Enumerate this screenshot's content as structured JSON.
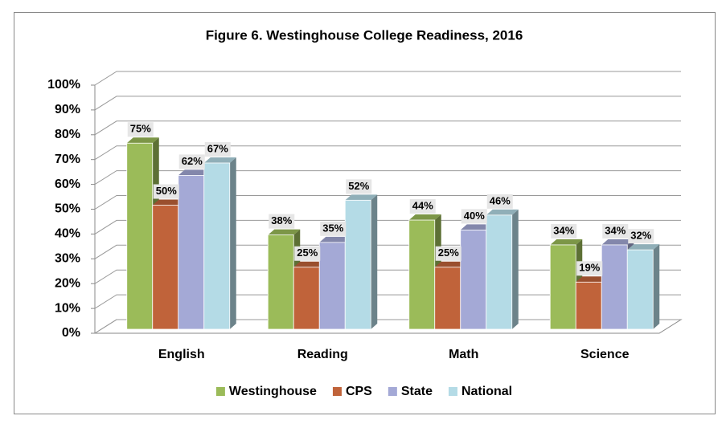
{
  "chart_data": {
    "type": "bar3d",
    "title": "Figure 6. Westinghouse College Readiness, 2016",
    "categories": [
      "English",
      "Reading",
      "Math",
      "Science"
    ],
    "series": [
      {
        "name": "Westinghouse",
        "color": "#9bbb59",
        "values": [
          75,
          38,
          44,
          34
        ],
        "value_labels": [
          "75%",
          "38%",
          "44%",
          "34%"
        ]
      },
      {
        "name": "CPS",
        "color": "#c0633a",
        "values": [
          50,
          25,
          25,
          19
        ],
        "value_labels": [
          "50%",
          "25%",
          "25%",
          "19%"
        ]
      },
      {
        "name": "State",
        "color": "#a4a9d6",
        "values": [
          62,
          35,
          40,
          34
        ],
        "value_labels": [
          "62%",
          "35%",
          "40%",
          "34%"
        ]
      },
      {
        "name": "National",
        "color": "#b4dbe6",
        "values": [
          67,
          52,
          46,
          32
        ],
        "value_labels": [
          "67%",
          "52%",
          "46%",
          "32%"
        ]
      }
    ],
    "ylim": [
      0,
      100
    ],
    "yticks": [
      {
        "value": 0,
        "label": "0%"
      },
      {
        "value": 10,
        "label": "10%"
      },
      {
        "value": 20,
        "label": "20%"
      },
      {
        "value": 30,
        "label": "30%"
      },
      {
        "value": 40,
        "label": "40%"
      },
      {
        "value": 50,
        "label": "50%"
      },
      {
        "value": 60,
        "label": "60%"
      },
      {
        "value": 70,
        "label": "70%"
      },
      {
        "value": 80,
        "label": "80%"
      },
      {
        "value": 90,
        "label": "90%"
      },
      {
        "value": 100,
        "label": "100%"
      }
    ],
    "grid": true,
    "legend": "bottom"
  }
}
